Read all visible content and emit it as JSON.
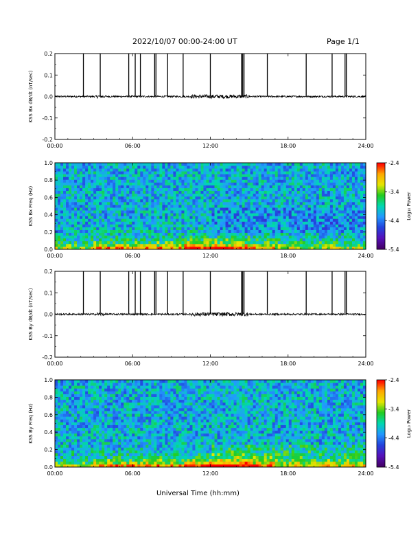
{
  "header": {
    "title": "2022/10/07  00:00-24:00 UT",
    "page": "Page 1/1"
  },
  "footer": {
    "xlabel": "Universal Time (hh:mm)"
  },
  "colorbar": {
    "label": "Log₁₀ Power",
    "ticks": [
      "-2.4",
      "-3.4",
      "-4.4",
      "-5.4"
    ],
    "colors": [
      "#ff0000",
      "#ffaa00",
      "#e6e600",
      "#22cc22",
      "#00d8b0",
      "#2299ff",
      "#2244dd",
      "#5511bb",
      "#440066"
    ]
  },
  "chart_data": [
    {
      "type": "line",
      "ylabel": "KSS Bx dB/dt (nT/sec)",
      "ylim": [
        -0.2,
        0.2
      ],
      "yticks": [
        "0.2",
        "0.1",
        "0.0",
        "-0.1",
        "-0.2"
      ],
      "xticks": [
        "00:00",
        "06:00",
        "12:00",
        "18:00",
        "24:00"
      ],
      "baseline": 0.0,
      "spikes_hours": [
        2.2,
        3.5,
        5.7,
        6.2,
        6.6,
        7.7,
        7.8,
        8.7,
        9.9,
        12.0,
        14.4,
        14.5,
        14.6,
        16.4,
        19.4,
        21.4,
        22.4,
        22.5
      ],
      "spike_value": 0.2
    },
    {
      "type": "heatmap",
      "ylabel": "KSS Bx Freq (Hz)",
      "ylim": [
        0.0,
        1.0
      ],
      "yticks": [
        "1.0",
        "0.8",
        "0.6",
        "0.4",
        "0.2",
        "0.0"
      ],
      "xticks": [
        "00:00",
        "06:00",
        "12:00",
        "18:00",
        "24:00"
      ],
      "zlim": [
        -5.4,
        -2.4
      ]
    },
    {
      "type": "line",
      "ylabel": "KSS By dB/dt (nT/sec)",
      "ylim": [
        -0.2,
        0.2
      ],
      "yticks": [
        "0.2",
        "0.1",
        "0.0",
        "-0.1",
        "-0.2"
      ],
      "xticks": [
        "00:00",
        "06:00",
        "12:00",
        "18:00",
        "24:00"
      ],
      "baseline": 0.0,
      "spikes_hours": [
        2.2,
        3.5,
        5.7,
        6.2,
        6.6,
        7.7,
        7.8,
        8.7,
        9.9,
        12.0,
        14.4,
        14.5,
        14.6,
        16.4,
        19.4,
        21.4,
        22.4,
        22.5
      ],
      "spike_value": 0.2
    },
    {
      "type": "heatmap",
      "ylabel": "KSS By Freq (Hz)",
      "ylim": [
        0.0,
        1.0
      ],
      "yticks": [
        "1.0",
        "0.8",
        "0.6",
        "0.4",
        "0.2",
        "0.0"
      ],
      "xticks": [
        "00:00",
        "06:00",
        "12:00",
        "18:00",
        "24:00"
      ],
      "zlim": [
        -5.4,
        -2.4
      ]
    }
  ]
}
